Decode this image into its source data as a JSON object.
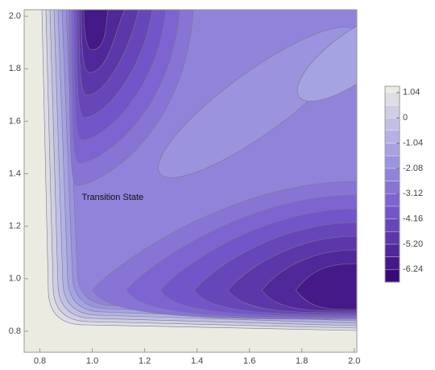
{
  "chart_data": {
    "type": "contour",
    "annotations": [
      {
        "text": "Transition State",
        "x": 0.96,
        "y": 1.31
      }
    ],
    "xlim": [
      0.74,
      2.01
    ],
    "ylim": [
      0.72,
      2.025
    ],
    "xticks": [
      0.8,
      {
        "value": 1,
        "label": "1.0"
      },
      1.2,
      1.4,
      1.6,
      1.8,
      {
        "value": 2,
        "label": "2.0"
      }
    ],
    "yticks": [
      0.8,
      {
        "value": 1,
        "label": "1.0"
      },
      1.2,
      1.4,
      1.6,
      1.8,
      {
        "value": 2,
        "label": "2.0"
      }
    ],
    "colorbar": {
      "lim": [
        -6.76,
        1.3
      ],
      "levels": [
        -6.76,
        -6.24,
        -5.72,
        -5.2,
        -4.68,
        -4.16,
        -3.64,
        -3.12,
        -2.6,
        -2.08,
        -1.56,
        -1.04,
        -0.52,
        0,
        0.52,
        1.04
      ],
      "ticks": [
        1.04,
        0,
        -1.04,
        -2.08,
        -3.12,
        -4.16,
        {
          "value": -5.2,
          "label": "-5.20"
        },
        -6.24
      ],
      "colormap": [
        "#3a0a78",
        "#7457cc",
        "#a9a8e4",
        "#f2f2e2"
      ]
    }
  }
}
